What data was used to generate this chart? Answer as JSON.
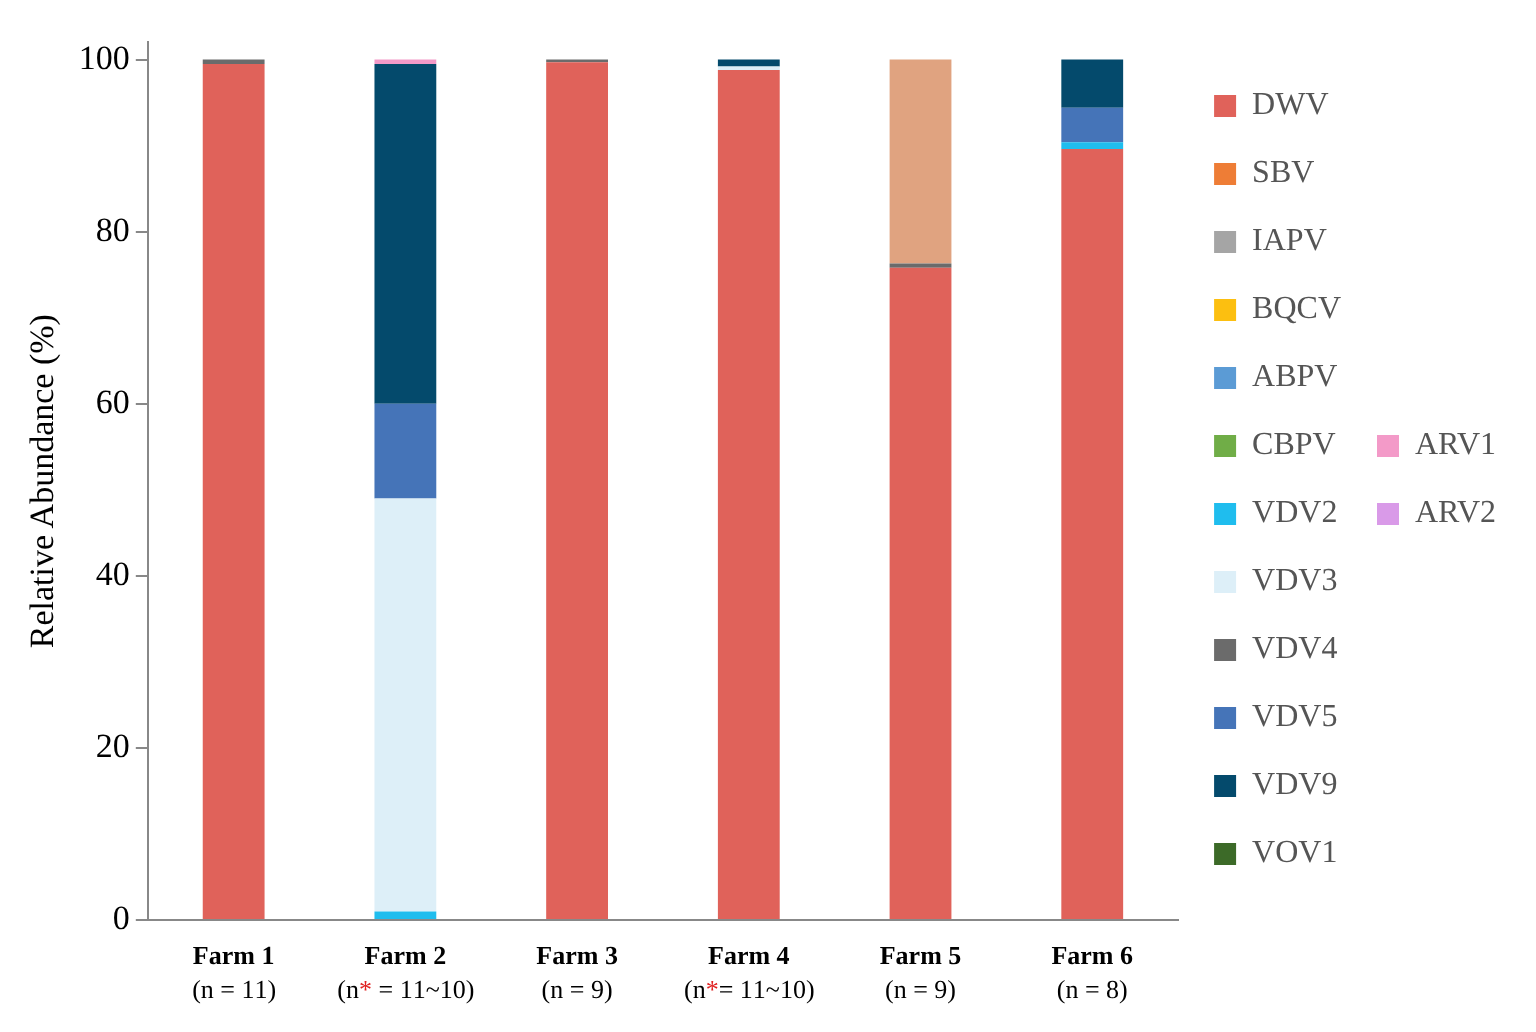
{
  "chart_data": {
    "type": "bar",
    "stacked": true,
    "ylabel": "Relative Abundance (%)",
    "categories": [
      "Farm 1\n(n = 11)",
      "Farm 2\n(n* = 11~10)",
      "Farm 3\n(n = 9)",
      "Farm 4\n(n*= 11~10)",
      "Farm 5\n(n = 9)",
      "Farm 6\n(n = 8)"
    ],
    "ylim": [
      0,
      102
    ],
    "yticks": [
      0,
      20,
      40,
      60,
      80,
      100
    ],
    "grid": false,
    "legend": "right",
    "series": [
      {
        "name": "DWV",
        "color": "#e0625a",
        "values": [
          99.5,
          0,
          99.7,
          98.8,
          75.8,
          89.6
        ]
      },
      {
        "name": "SBV",
        "color": "#ee7d36",
        "values": [
          0,
          0,
          0,
          0,
          0,
          0
        ]
      },
      {
        "name": "IAPV",
        "color": "#a5a5a5",
        "values": [
          0,
          0,
          0,
          0,
          0,
          0
        ]
      },
      {
        "name": "BQCV",
        "color": "#fcbf10",
        "values": [
          0,
          0,
          0,
          0,
          0,
          0
        ]
      },
      {
        "name": "ABPV",
        "color": "#5b9bd5",
        "values": [
          0,
          0,
          0,
          0,
          0,
          0
        ]
      },
      {
        "name": "CBPV",
        "color": "#70ad47",
        "values": [
          0,
          0,
          0,
          0,
          0,
          0
        ]
      },
      {
        "name": "VDV2",
        "color": "#1fbdee",
        "values": [
          0,
          1,
          0,
          0,
          0,
          0.8
        ]
      },
      {
        "name": "VDV3",
        "color": "#ddeff8",
        "values": [
          0,
          48,
          0,
          0.4,
          0,
          0
        ]
      },
      {
        "name": "VDV4",
        "color": "#6b6b6b",
        "values": [
          0.5,
          0,
          0.3,
          0,
          0.5,
          0
        ]
      },
      {
        "name": "VDV5",
        "color": "#4574b8",
        "values": [
          0,
          11,
          0,
          0,
          0,
          4
        ]
      },
      {
        "name": "VDV9",
        "color": "#044a6c",
        "values": [
          0,
          39.5,
          0,
          0.8,
          0,
          5.6
        ]
      },
      {
        "name": "VOV1",
        "color": "#3c6a28",
        "values": [
          0,
          0,
          0,
          0,
          0,
          0
        ]
      },
      {
        "name": "ARV1",
        "color": "#f39ac8",
        "values": [
          0,
          0.5,
          0,
          0,
          0,
          0
        ]
      },
      {
        "name": "ARV2",
        "color": "#d99ae8",
        "values": [
          0,
          0,
          0,
          0,
          0,
          0
        ]
      },
      {
        "color": "#e0a380",
        "values": [
          0,
          0,
          0,
          0,
          23.7,
          0
        ]
      }
    ]
  }
}
